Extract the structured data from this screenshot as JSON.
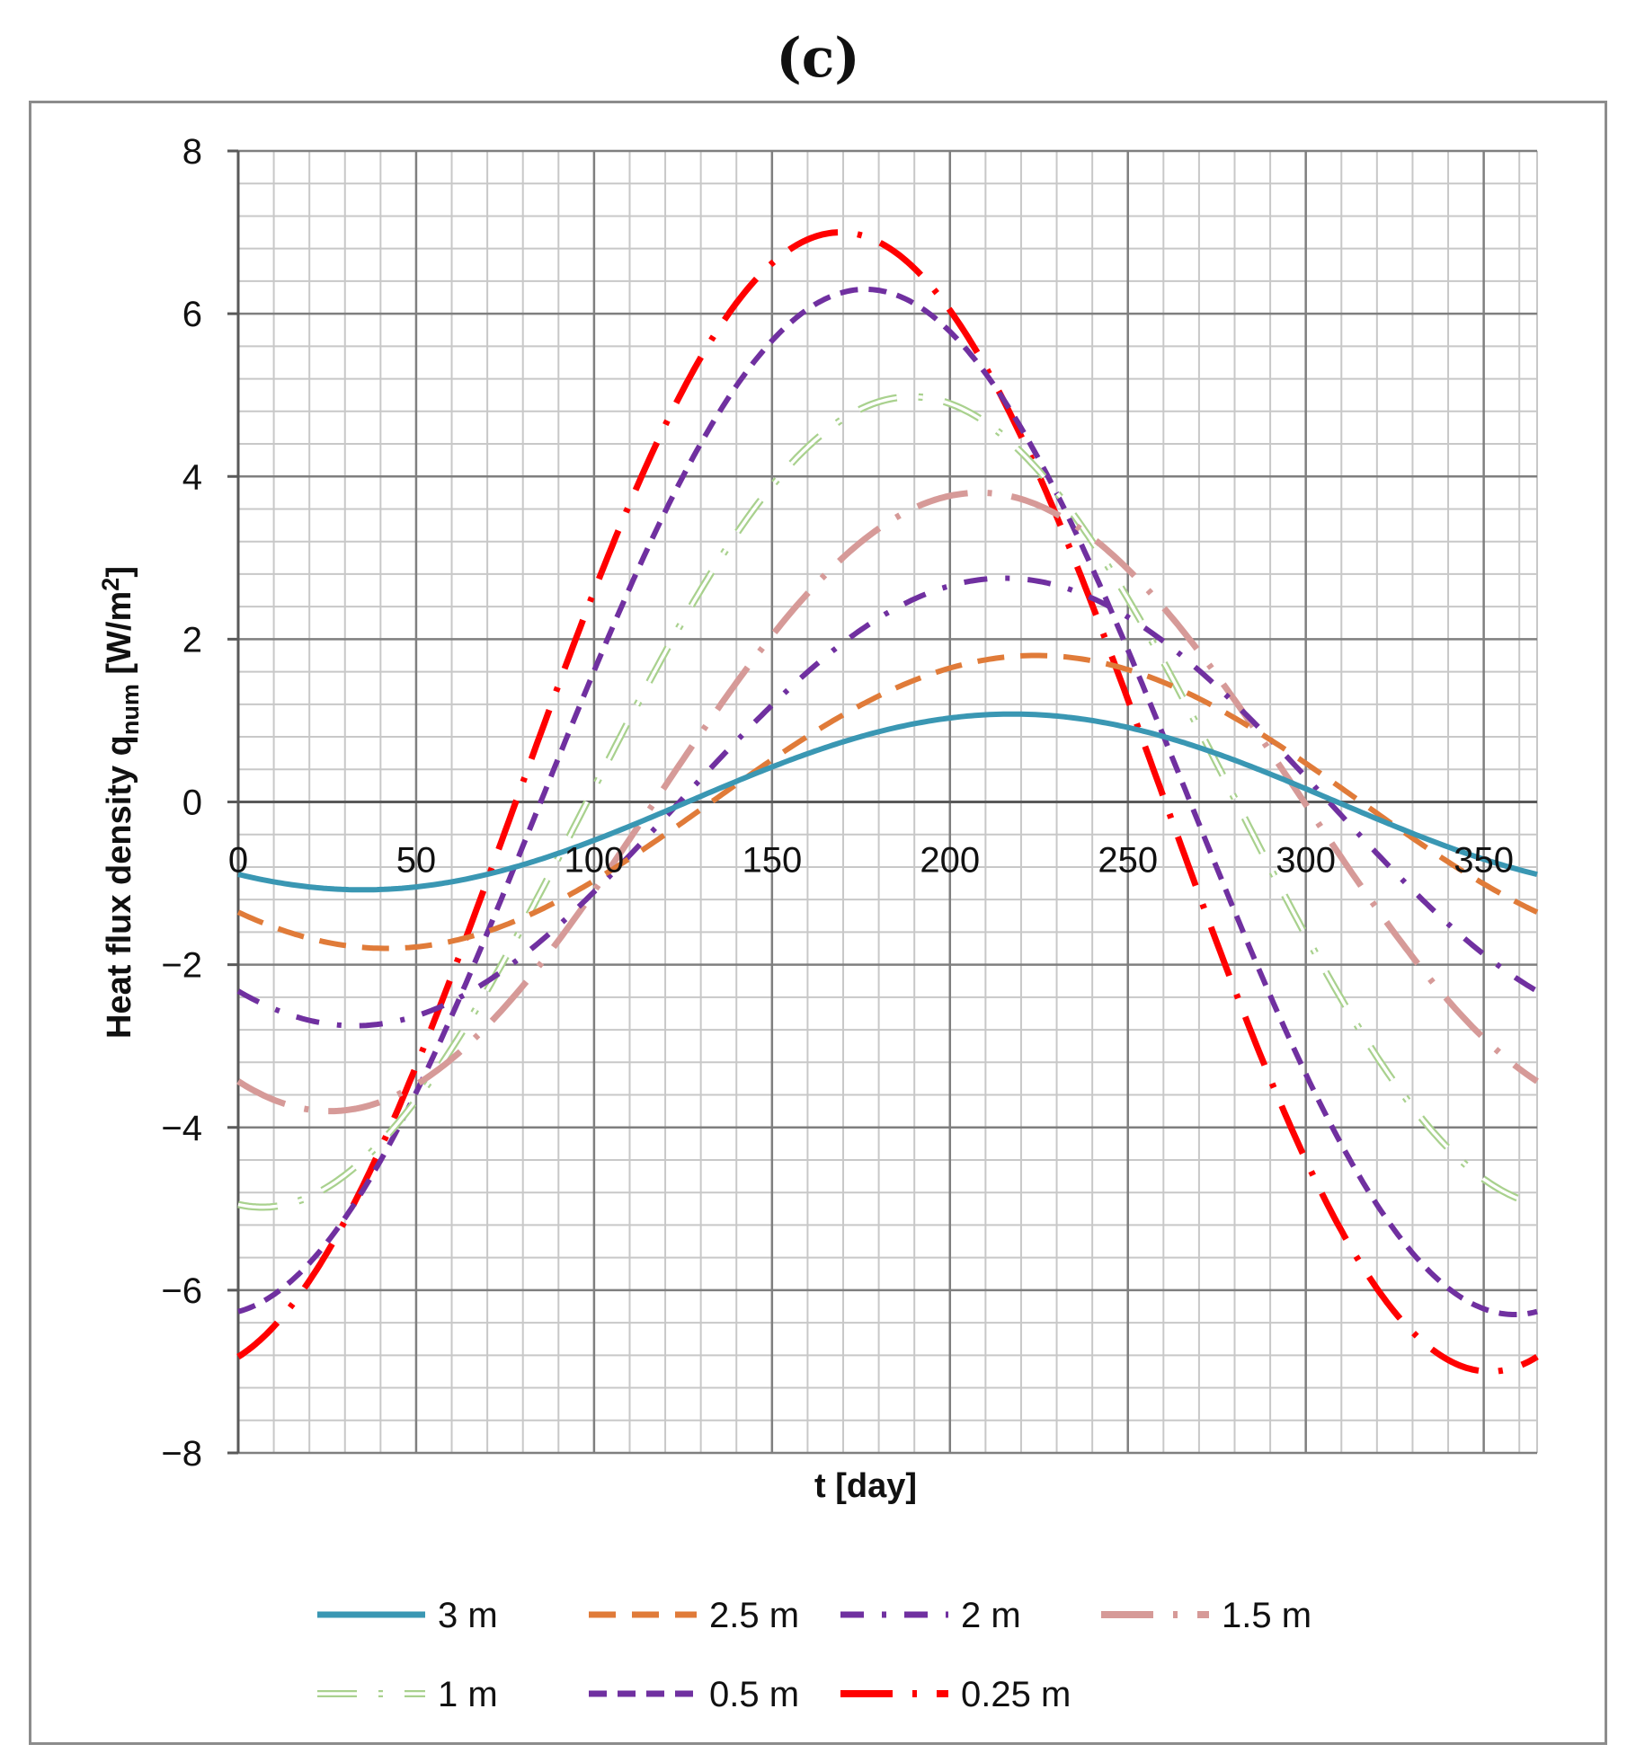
{
  "panel_label": "(c)",
  "chart_data": {
    "type": "line",
    "title": "",
    "xlabel": "t [day]",
    "ylabel_main": "Heat flux density q",
    "ylabel_sub": "num",
    "ylabel_unit_open": " [W/m",
    "ylabel_unit_sup": "2",
    "ylabel_unit_close": "]",
    "xlim": [
      0,
      365
    ],
    "ylim": [
      -8,
      8
    ],
    "x_major_ticks": [
      0,
      50,
      100,
      150,
      200,
      250,
      300,
      350
    ],
    "x_tick_labels": [
      "0",
      "50",
      "100",
      "150",
      "200",
      "250",
      "300",
      "350"
    ],
    "y_major_ticks": [
      -8,
      -6,
      -4,
      -2,
      0,
      2,
      4,
      6,
      8
    ],
    "y_tick_labels": [
      "−8",
      "−6",
      "−4",
      "−2",
      "0",
      "2",
      "4",
      "6",
      "8"
    ],
    "grid": true,
    "legend_position": "bottom",
    "period_days": 365,
    "series": [
      {
        "name": "3 m",
        "label": "3 m",
        "color": "#3a97b3",
        "style": "solid",
        "amplitude": 1.08,
        "phase_day": 126.25,
        "x": [
          0,
          50,
          100,
          150,
          200,
          250,
          300,
          365
        ],
        "values": [
          -0.87,
          -1.05,
          -0.46,
          0.45,
          1.04,
          0.88,
          0.1,
          -0.87
        ]
      },
      {
        "name": "2.5 m",
        "label": "2.5 m",
        "color": "#e07b39",
        "style": "dash",
        "amplitude": 1.8,
        "phase_day": 133.0,
        "x": [
          0,
          50,
          100,
          150,
          200,
          250,
          300,
          365
        ],
        "values": [
          -1.24,
          -1.78,
          -1.1,
          0.36,
          1.6,
          1.72,
          0.57,
          -1.24
        ]
      },
      {
        "name": "2 m",
        "label": "2 m",
        "color": "#7030a0",
        "style": "dashdot",
        "amplitude": 2.75,
        "phase_day": 124.0,
        "x": [
          0,
          50,
          100,
          150,
          200,
          250,
          300,
          365
        ],
        "values": [
          -2.2,
          -2.65,
          -1.09,
          1.09,
          2.65,
          2.22,
          0.15,
          -2.2
        ]
      },
      {
        "name": "1.5 m",
        "label": "1.5 m",
        "color": "#d69a98",
        "style": "longdashdot",
        "amplitude": 3.8,
        "phase_day": 117.0,
        "x": [
          0,
          50,
          100,
          150,
          200,
          250,
          300,
          365
        ],
        "values": [
          -3.48,
          -3.57,
          -1.05,
          1.98,
          3.77,
          2.94,
          0.05,
          -3.48
        ]
      },
      {
        "name": "1 m",
        "label": "1 m",
        "color": "#a9d18e",
        "style": "hollowdashdot",
        "amplitude": 4.98,
        "phase_day": 98.0,
        "x": [
          0,
          50,
          100,
          150,
          200,
          250,
          300,
          365
        ],
        "values": [
          -4.93,
          -3.86,
          -0.06,
          3.75,
          4.96,
          2.84,
          -1.1,
          -4.93
        ]
      },
      {
        "name": "0.5 m",
        "label": "0.5 m",
        "color": "#7030a0",
        "style": "shortdash",
        "amplitude": 6.3,
        "phase_day": 85.0,
        "x": [
          0,
          50,
          100,
          150,
          200,
          250,
          300,
          365
        ],
        "values": [
          -6.25,
          -3.59,
          1.6,
          5.63,
          5.86,
          2.23,
          -3.1,
          -6.25
        ]
      },
      {
        "name": "0.25 m",
        "label": "0.25 m",
        "color": "#ff0000",
        "style": "longdashdot",
        "amplitude": 7.0,
        "phase_day": 78.0,
        "x": [
          0,
          50,
          100,
          150,
          200,
          250,
          300,
          365
        ],
        "values": [
          -6.77,
          -3.28,
          2.72,
          6.74,
          5.85,
          1.03,
          -4.5,
          -6.77
        ]
      }
    ]
  }
}
